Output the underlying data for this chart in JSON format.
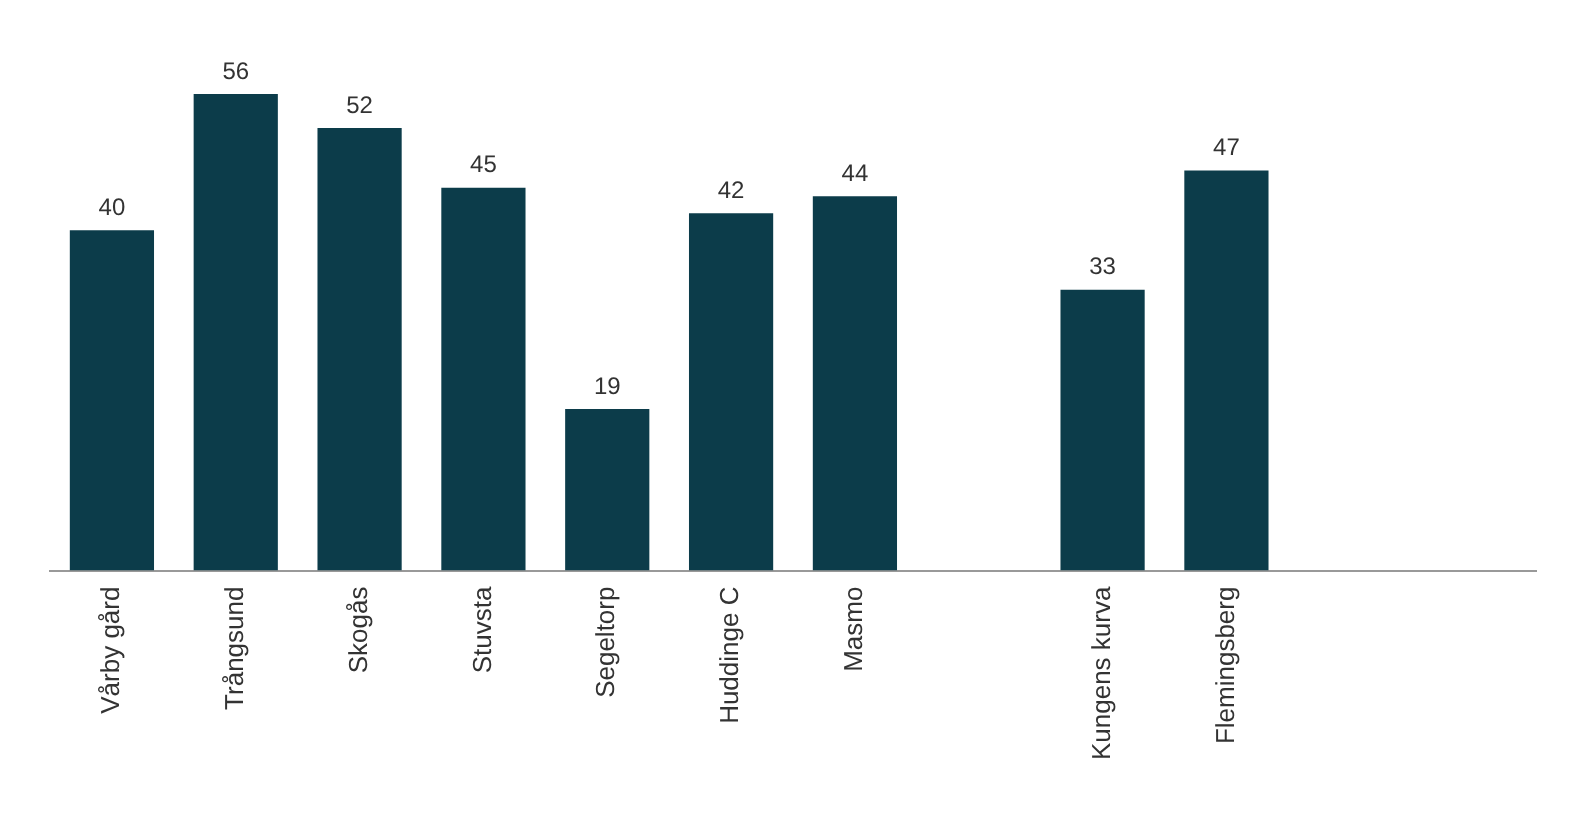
{
  "chart_data": {
    "type": "bar",
    "categories": [
      "Vårby gård",
      "Trångsund",
      "Skogås",
      "Stuvsta",
      "Segeltorp",
      "Huddinge C",
      "Masmo",
      null,
      "Kungens kurva",
      "Flemingsberg",
      null,
      null
    ],
    "values": [
      40,
      56,
      52,
      45,
      19,
      42,
      44,
      null,
      33,
      47,
      null,
      null
    ],
    "color": "#0c3c4a",
    "data_labels": true,
    "grid": false,
    "legend": false
  }
}
